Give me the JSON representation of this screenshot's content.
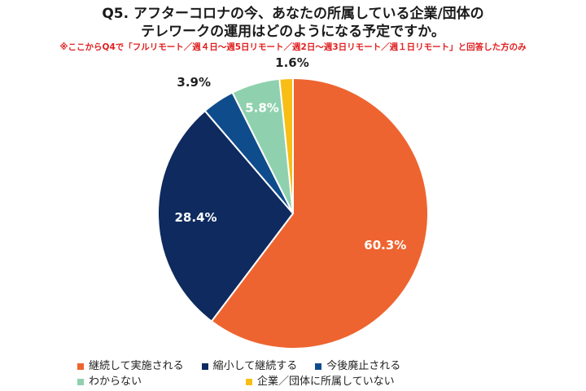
{
  "title_line1": "Q5. アフターコロナの今、あなたの所属している企業/団体の",
  "title_line2": "テレワークの運用はどのようになる予定ですか。",
  "subtitle": "※ここからQ4で「フルリモート／週４日〜週5日リモート／週2日〜週3日リモート／週１日リモート」と回答した方のみ",
  "chart_data": {
    "type": "pie",
    "start_angle_deg": 0,
    "direction": "clockwise",
    "slices": [
      {
        "label": "継続して実施される",
        "value": 60.3,
        "display": "60.3%",
        "color": "#EE6430",
        "label_color": "#ffffff"
      },
      {
        "label": "縮小して継続する",
        "value": 28.4,
        "display": "28.4%",
        "color": "#0E2A5E",
        "label_color": "#ffffff"
      },
      {
        "label": "今後廃止される",
        "value": 3.9,
        "display": "3.9%",
        "color": "#0F4C8C",
        "label_color": "#222222"
      },
      {
        "label": "わからない",
        "value": 5.8,
        "display": "5.8%",
        "color": "#8FD1AE",
        "label_color": "#ffffff"
      },
      {
        "label": "企業／団体に所属していない",
        "value": 1.6,
        "display": "1.6%",
        "color": "#F8BE16",
        "label_color": "#222222"
      }
    ],
    "legend_position": "bottom"
  }
}
